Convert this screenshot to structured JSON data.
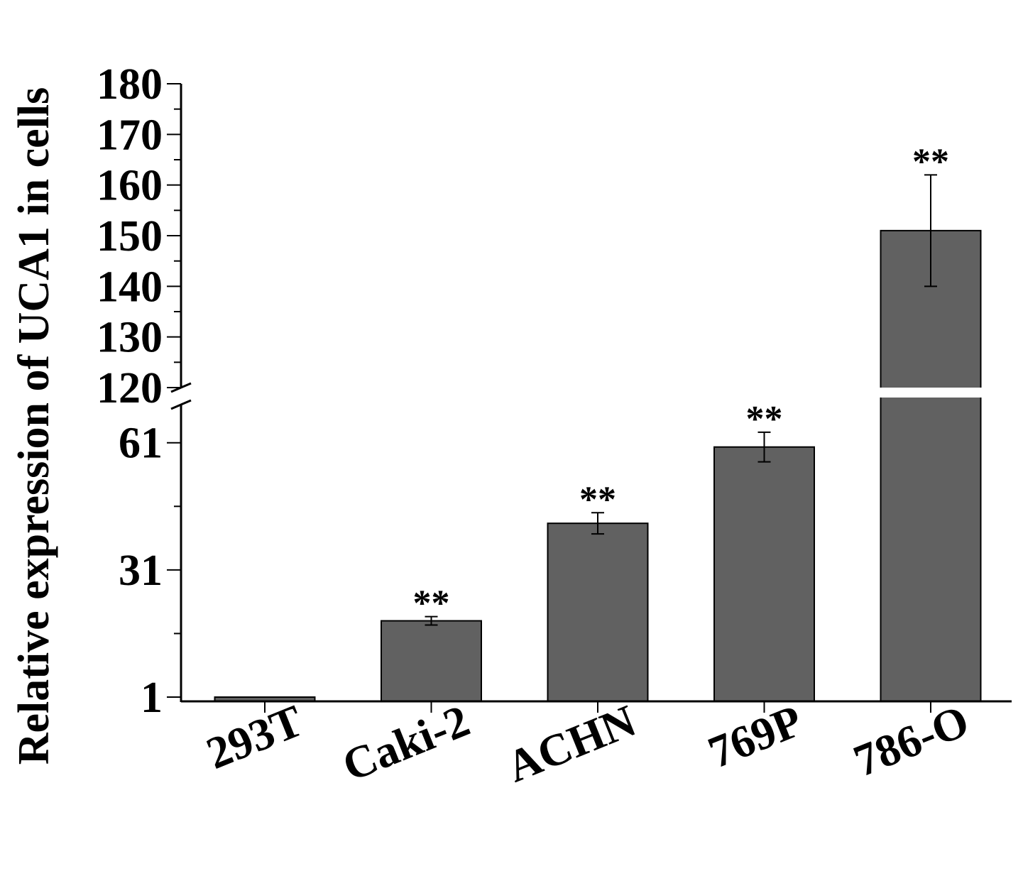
{
  "chart_data": {
    "type": "bar",
    "ylabel": "Relative expression of UCA1 in cells",
    "categories": [
      "293T",
      "Caki-2",
      "ACHN",
      "769P",
      "786-O"
    ],
    "values": [
      1,
      19,
      42,
      60,
      151
    ],
    "errors": [
      0,
      1,
      2.5,
      3.5,
      11
    ],
    "significance": [
      "",
      "**",
      "**",
      "**",
      "**"
    ],
    "y_ticks_lower": [
      "1",
      "31",
      "61"
    ],
    "y_ticks_upper": [
      "120",
      "130",
      "140",
      "150",
      "160",
      "170",
      "180"
    ],
    "y_break": [
      70,
      120
    ],
    "lower_ylim": [
      0,
      70
    ],
    "upper_ylim": [
      120,
      180
    ],
    "bar_color": "#616161",
    "grid": false
  }
}
